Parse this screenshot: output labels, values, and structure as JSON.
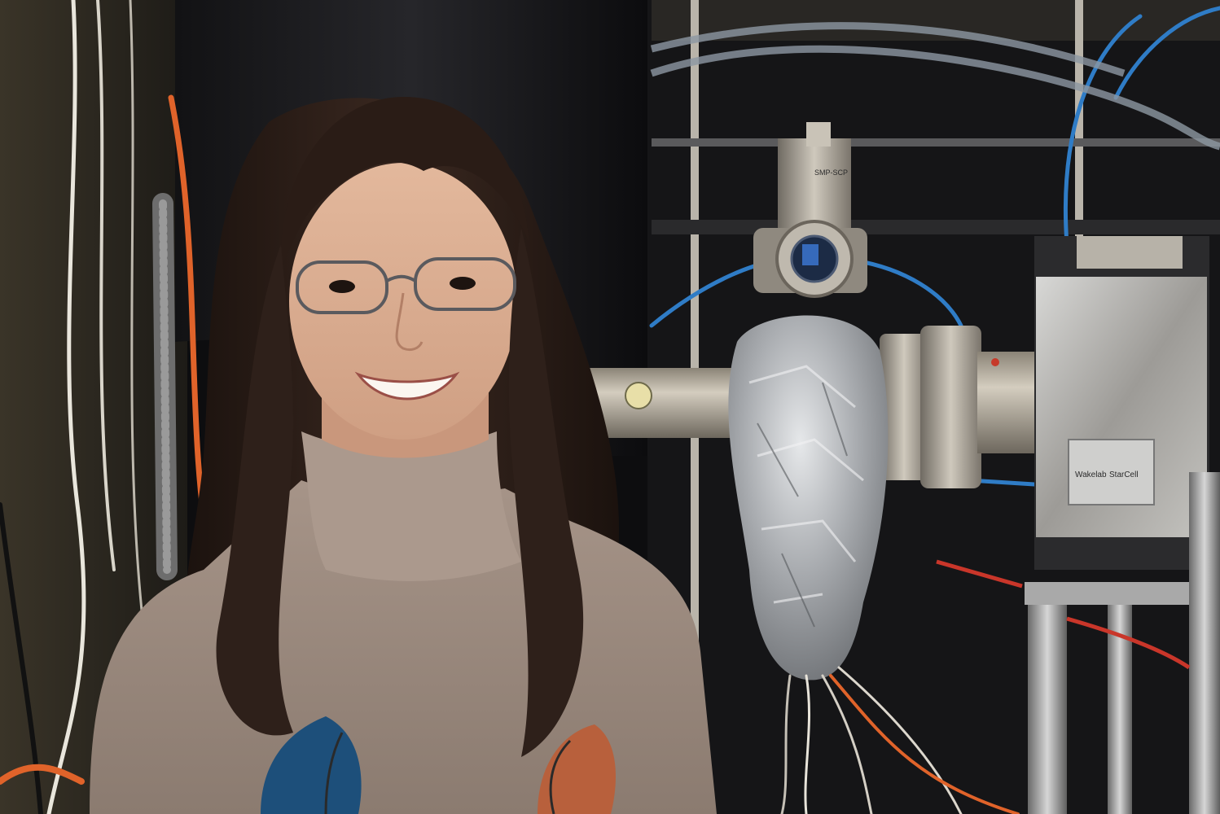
{
  "photo": {
    "subject": "portrait",
    "colors": {
      "sweater": "#9c8a7f",
      "hair": "#241813",
      "skin": "#d9ad90",
      "foil": "#bfc2c6",
      "chamber_steel": "#a9a39a",
      "background_dark": "#0d0d0f",
      "black_curtain": "#1a1a1c",
      "orange_cable": "#e0632a",
      "blue_hose": "#2f7cc6"
    }
  },
  "equipment": {
    "gauge_label": "SMP-SCP",
    "plate_brand": "Wakelab",
    "plate_model": "StarCell"
  }
}
